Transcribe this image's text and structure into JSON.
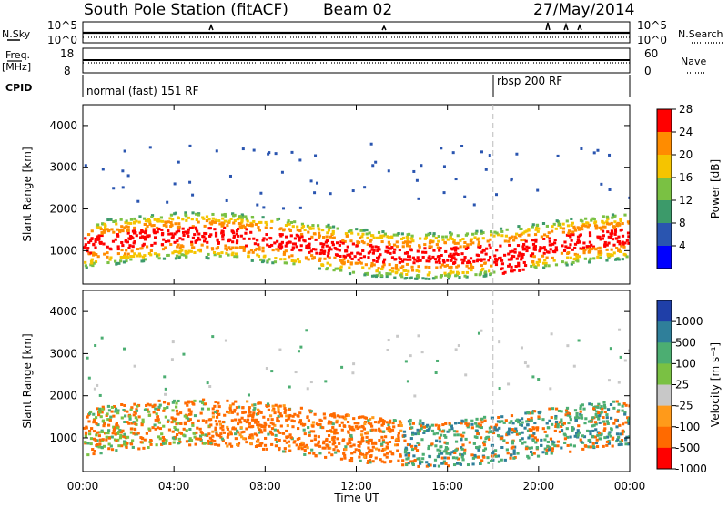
{
  "header": {
    "station": "South Pole Station (fitACF)",
    "beam": "Beam 02",
    "date": "27/May/2014"
  },
  "top_panels": {
    "noise_left_label": "N.Sky",
    "noise_right_label": "N.Search",
    "noise_left_ticks": [
      "10^5",
      "10^0"
    ],
    "noise_right_ticks": [
      "10^5",
      "10^0"
    ],
    "freq_label_line1": "Freq.",
    "freq_label_line2": "[MHz]",
    "freq_ticks": [
      "18",
      "8"
    ],
    "nave_label": "Nave",
    "nave_ticks": [
      "60",
      "0"
    ],
    "cpid_label": "CPID",
    "cpid_mode_1": "normal (fast) 151 RF",
    "cpid_mode_2": "rbsp 200 RF"
  },
  "chart_data": [
    {
      "type": "heatmap",
      "name": "Power",
      "ylabel": "Slant Range [km]",
      "xlabel": "",
      "x_ticks": [
        "00:00",
        "04:00",
        "08:00",
        "12:00",
        "16:00",
        "20:00",
        "00:00"
      ],
      "y_ticks": [
        "1000",
        "2000",
        "3000",
        "4000"
      ],
      "ylim": [
        200,
        4500
      ],
      "colorbar_label": "Power [dB]",
      "colorbar_ticks": [
        "4",
        "8",
        "12",
        "16",
        "20",
        "24",
        "28"
      ],
      "colors": [
        "#0000ff",
        "#2a55b0",
        "#3c9a6a",
        "#7ac143",
        "#f5c400",
        "#ff8c00",
        "#ff0000"
      ],
      "mode_change_hour": 18.0
    },
    {
      "type": "heatmap",
      "name": "Velocity",
      "ylabel": "Slant Range [km]",
      "xlabel": "Time UT",
      "x_ticks": [
        "00:00",
        "04:00",
        "08:00",
        "12:00",
        "16:00",
        "20:00",
        "00:00"
      ],
      "y_ticks": [
        "1000",
        "2000",
        "3000",
        "4000"
      ],
      "ylim": [
        200,
        4500
      ],
      "colorbar_label": "Velocity [m s⁻¹]",
      "colorbar_ticks": [
        "1000",
        "500",
        "100",
        "25",
        "-25",
        "-100",
        "-500",
        "-1000"
      ],
      "colors": [
        "#1f3fa8",
        "#2f7f9a",
        "#4cae72",
        "#7ac143",
        "#c8c8c8",
        "#ff9a1a",
        "#ff6a00",
        "#ff0000"
      ],
      "mode_change_hour": 18.0
    }
  ]
}
